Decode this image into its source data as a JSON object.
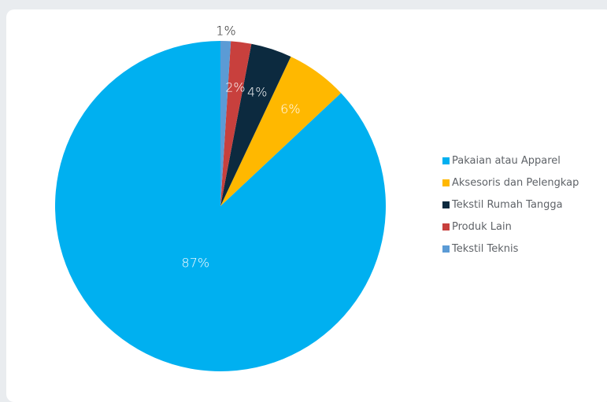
{
  "chart_data": {
    "type": "pie",
    "title": "",
    "legend_position": "right",
    "slices": [
      {
        "name": "Pakaian atau Apparel",
        "value": 87,
        "label": "87%",
        "color": "#00b0f0"
      },
      {
        "name": "Aksesoris dan Pelengkap",
        "value": 6,
        "label": "6%",
        "color": "#ffb800"
      },
      {
        "name": "Tekstil Rumah Tangga",
        "value": 4,
        "label": "4%",
        "color": "#0c2a3f"
      },
      {
        "name": "Produk Lain",
        "value": 2,
        "label": "2%",
        "color": "#c8403d"
      },
      {
        "name": "Tekstil Teknis",
        "value": 1,
        "label": "1%",
        "color": "#5b9bd5"
      }
    ]
  }
}
